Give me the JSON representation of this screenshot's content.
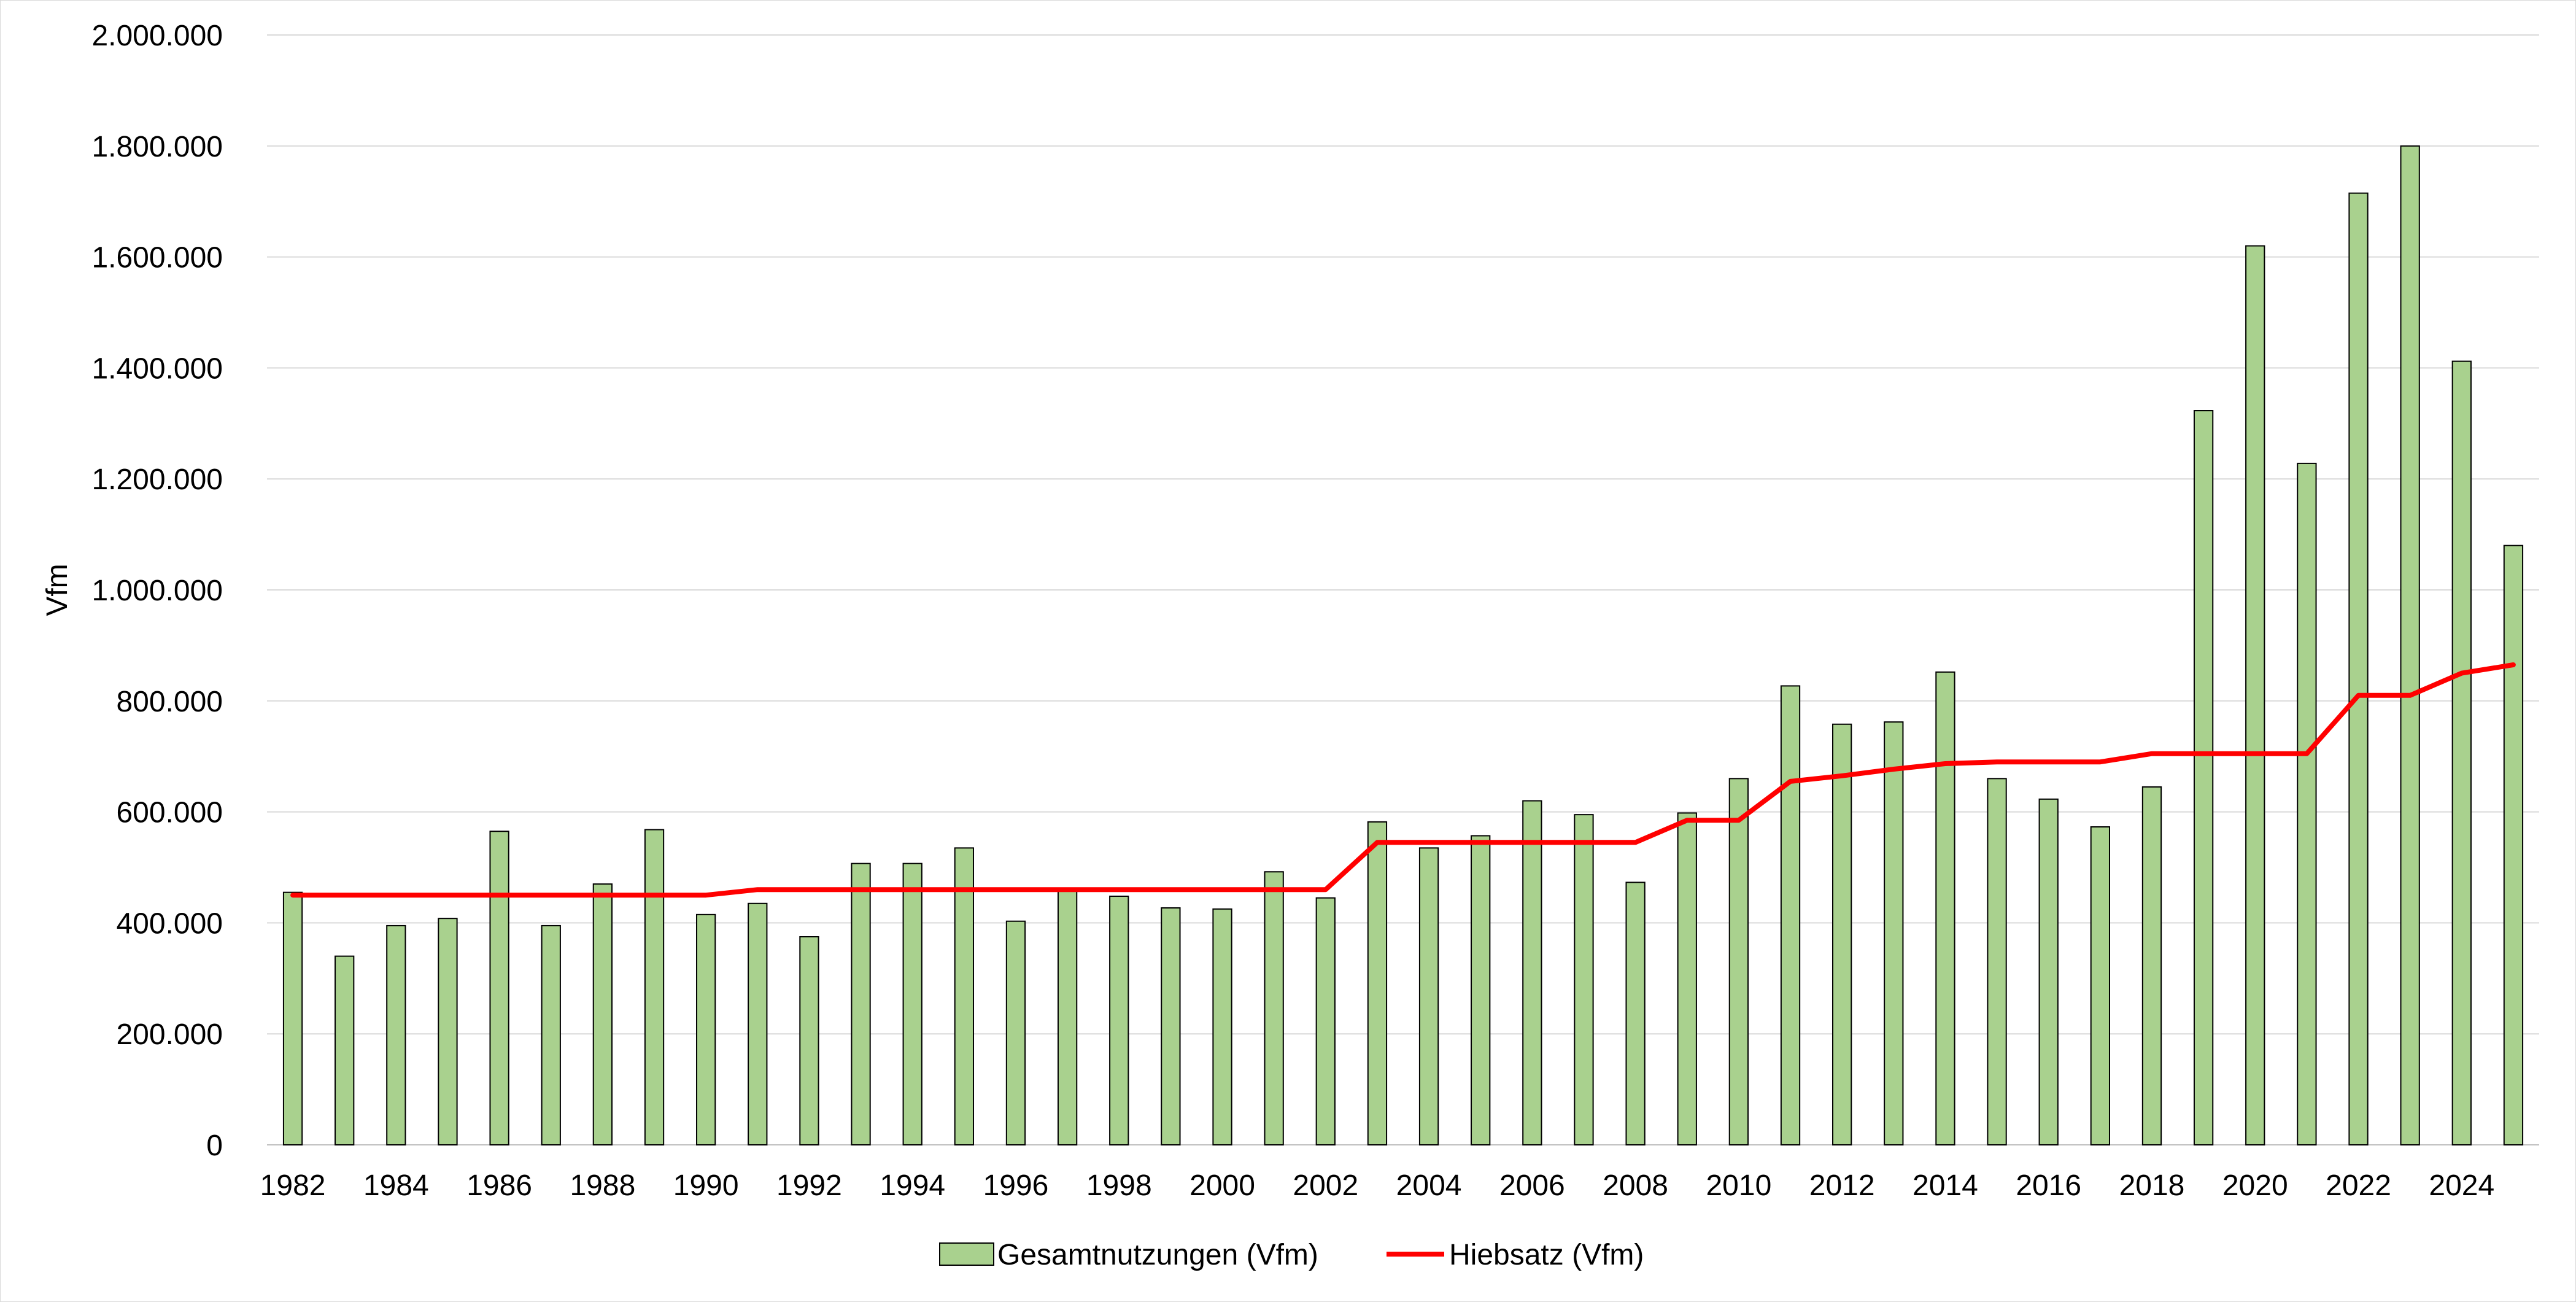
{
  "chart_data": {
    "type": "bar",
    "title": "",
    "xlabel": "",
    "ylabel": "Vfm",
    "ylim": [
      0,
      2000000
    ],
    "y_tick_values": [
      0,
      200000,
      400000,
      600000,
      800000,
      1000000,
      1200000,
      1400000,
      1600000,
      1800000,
      2000000
    ],
    "y_tick_labels": [
      "0",
      "200.000",
      "400.000",
      "600.000",
      "800.000",
      "1.000.000",
      "1.200.000",
      "1.400.000",
      "1.600.000",
      "1.800.000",
      "2.000.000"
    ],
    "categories": [
      "1982",
      "1983",
      "1984",
      "1985",
      "1986",
      "1987",
      "1988",
      "1989",
      "1990",
      "1991",
      "1992",
      "1993",
      "1994",
      "1995",
      "1996",
      "1997",
      "1998",
      "1999",
      "2000",
      "2001",
      "2002",
      "2003",
      "2004",
      "2005",
      "2006",
      "2007",
      "2008",
      "2009",
      "2010",
      "2011",
      "2012",
      "2013",
      "2014",
      "2015",
      "2016",
      "2017",
      "2018",
      "2019",
      "2020",
      "2021",
      "2022",
      "2023",
      "2024",
      "2025"
    ],
    "x_tick_labels": [
      "1982",
      "",
      "1984",
      "",
      "1986",
      "",
      "1988",
      "",
      "1990",
      "",
      "1992",
      "",
      "1994",
      "",
      "1996",
      "",
      "1998",
      "",
      "2000",
      "",
      "2002",
      "",
      "2004",
      "",
      "2006",
      "",
      "2008",
      "",
      "2010",
      "",
      "2012",
      "",
      "2014",
      "",
      "2016",
      "",
      "2018",
      "",
      "2020",
      "",
      "2022",
      "",
      "2024",
      ""
    ],
    "grid": true,
    "legend_position": "bottom",
    "series": [
      {
        "name": "Gesamtnutzungen (Vfm)",
        "type": "bar",
        "color": "#a9d18e",
        "values": [
          455000,
          340000,
          395000,
          408000,
          565000,
          395000,
          470000,
          568000,
          415000,
          435000,
          375000,
          507000,
          507000,
          535000,
          403000,
          457000,
          448000,
          427000,
          425000,
          492000,
          445000,
          582000,
          535000,
          557000,
          620000,
          595000,
          473000,
          598000,
          660000,
          827000,
          758000,
          762000,
          852000,
          660000,
          623000,
          573000,
          645000,
          1323000,
          1620000,
          1228000,
          1715000,
          1800000,
          1412000,
          1080000
        ]
      },
      {
        "name": "Hiebsatz (Vfm)",
        "type": "line",
        "color": "#ff0000",
        "values": [
          450000,
          450000,
          450000,
          450000,
          450000,
          450000,
          450000,
          450000,
          450000,
          460000,
          460000,
          460000,
          460000,
          460000,
          460000,
          460000,
          460000,
          460000,
          460000,
          460000,
          460000,
          545000,
          545000,
          545000,
          545000,
          545000,
          545000,
          585000,
          585000,
          655000,
          665000,
          677000,
          687000,
          690000,
          690000,
          690000,
          705000,
          705000,
          705000,
          705000,
          810000,
          810000,
          850000,
          865000
        ]
      }
    ]
  }
}
